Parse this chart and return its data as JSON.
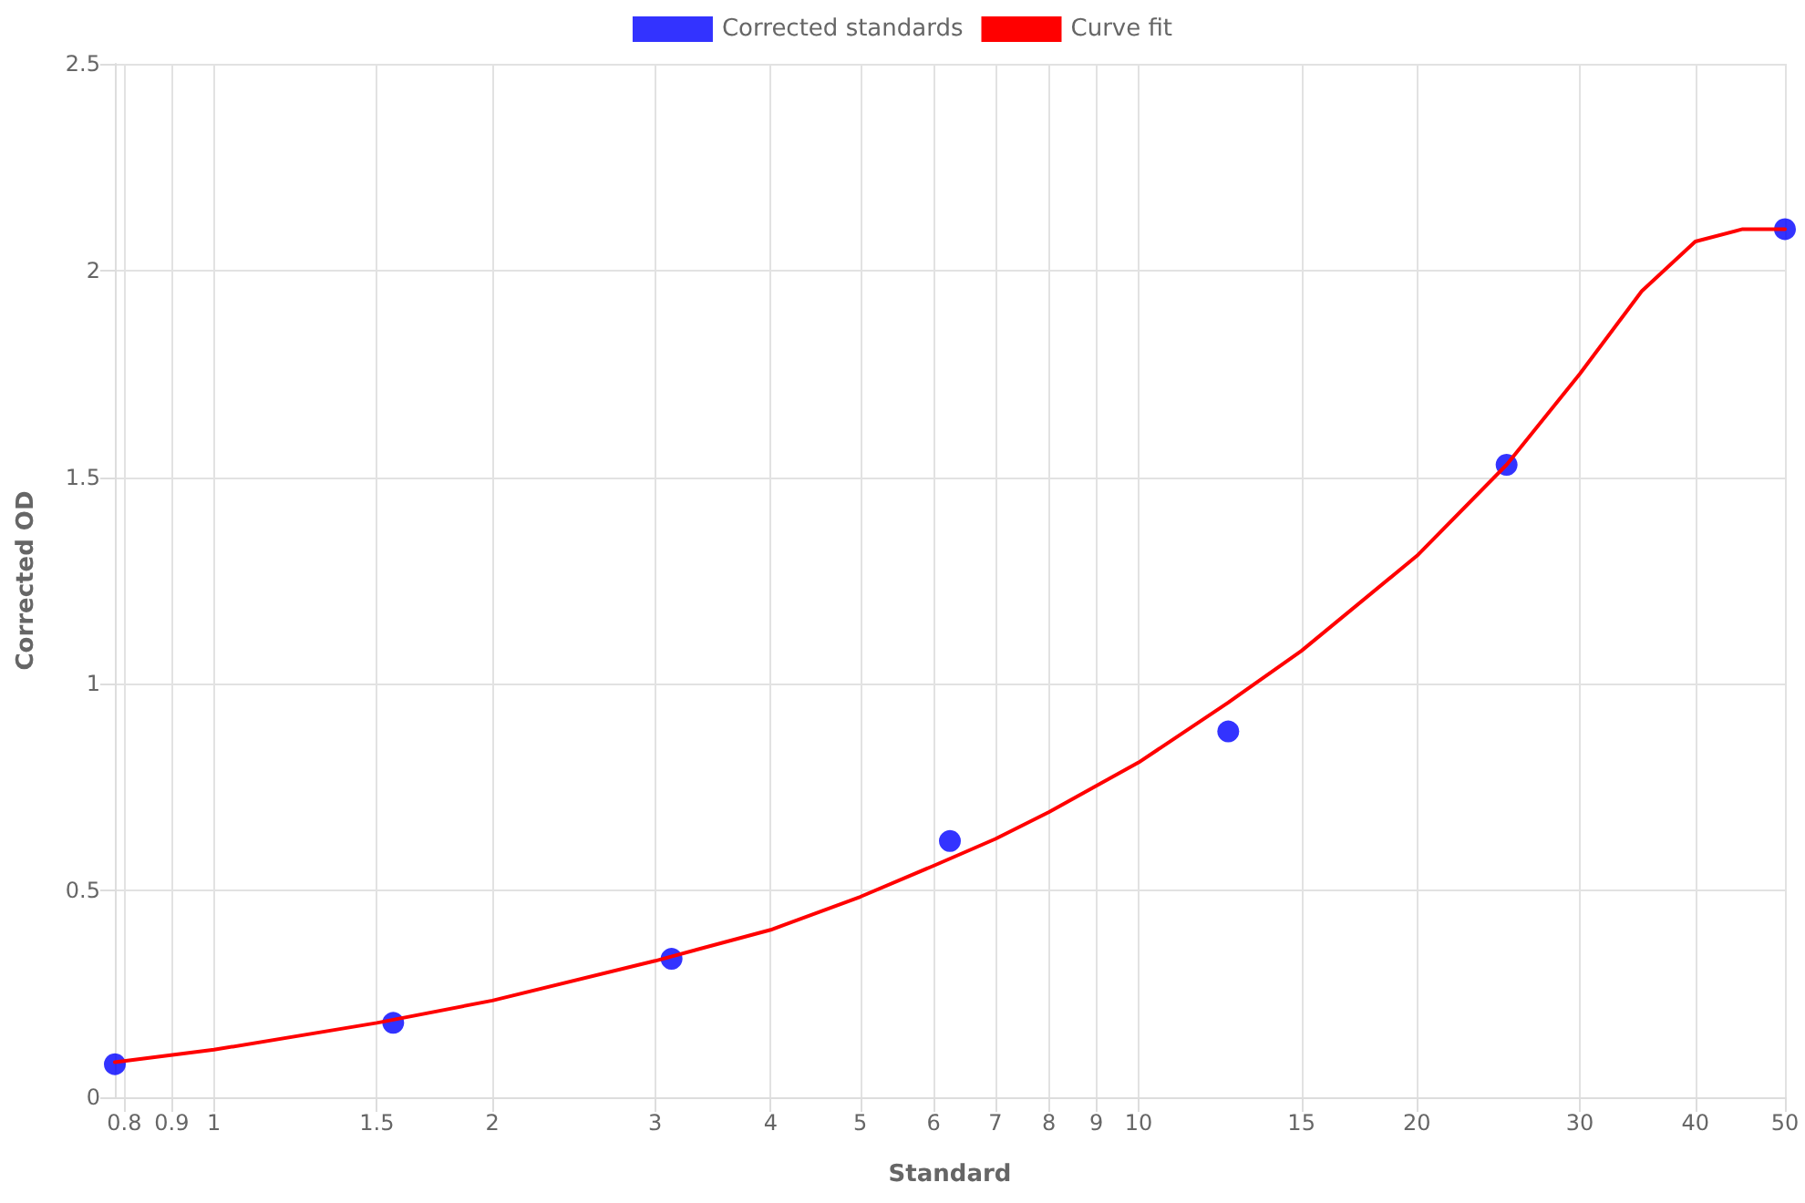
{
  "chart_data": {
    "type": "scatter",
    "xlabel": "Standard",
    "ylabel": "Corrected OD",
    "log": "x",
    "grid": true,
    "legend": "top",
    "xlim": [
      0.78125,
      50
    ],
    "xticks": [
      0.8,
      0.9,
      1,
      1.5,
      2,
      3,
      4,
      5,
      6,
      7,
      8,
      9,
      10,
      15,
      20,
      30,
      40,
      50
    ],
    "ylim": [
      0,
      2.5
    ],
    "yticks": [
      0,
      0.5,
      1,
      1.5,
      2,
      2.5
    ],
    "series": [
      {
        "name": "Corrected standards",
        "marker": "circle",
        "color": "#0000ff",
        "x": [
          0.78125,
          1.5625,
          3.125,
          6.25,
          12.5,
          25,
          50
        ],
        "values": [
          0.08,
          0.18,
          0.335,
          0.62,
          0.885,
          1.53,
          2.1
        ]
      },
      {
        "name": "Curve fit",
        "type": "line",
        "marker": "none",
        "line_style": "solid",
        "color": "#ff0000",
        "x": [
          0.78125,
          1,
          1.5,
          2,
          3,
          4,
          5,
          6,
          7,
          8,
          10,
          12.5,
          15,
          20,
          25,
          30,
          35,
          40,
          45,
          50
        ],
        "values": [
          0.085,
          0.115,
          0.18,
          0.234,
          0.33,
          0.405,
          0.485,
          0.56,
          0.625,
          0.69,
          0.81,
          0.955,
          1.08,
          1.31,
          1.53,
          1.75,
          1.95,
          2.07,
          2.1,
          2.1
        ]
      }
    ]
  }
}
